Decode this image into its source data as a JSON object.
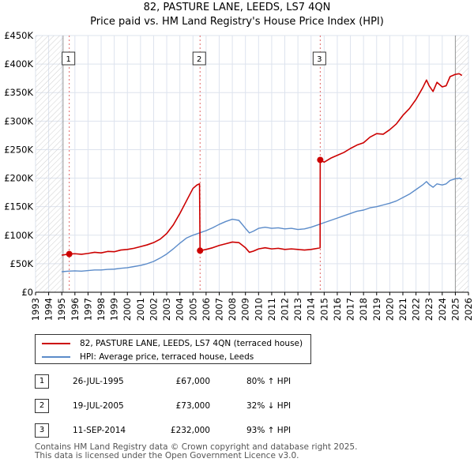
{
  "chart_data": {
    "type": "line",
    "title": "82, PASTURE LANE, LEEDS, LS7 4QN",
    "subtitle": "Price paid vs. HM Land Registry's House Price Index (HPI)",
    "xlim": [
      1993,
      2026
    ],
    "ylim": [
      0,
      450000
    ],
    "y_ticks": [
      {
        "value": 0,
        "label": "£0"
      },
      {
        "value": 50000,
        "label": "£50K"
      },
      {
        "value": 100000,
        "label": "£100K"
      },
      {
        "value": 150000,
        "label": "£150K"
      },
      {
        "value": 200000,
        "label": "£200K"
      },
      {
        "value": 250000,
        "label": "£250K"
      },
      {
        "value": 300000,
        "label": "£300K"
      },
      {
        "value": 350000,
        "label": "£350K"
      },
      {
        "value": 400000,
        "label": "£400K"
      },
      {
        "value": 450000,
        "label": "£450K"
      }
    ],
    "x_ticks": [
      "1993",
      "1994",
      "1995",
      "1996",
      "1997",
      "1998",
      "1999",
      "2000",
      "2001",
      "2002",
      "2003",
      "2004",
      "2005",
      "2006",
      "2007",
      "2008",
      "2009",
      "2010",
      "2011",
      "2012",
      "2013",
      "2014",
      "2015",
      "2016",
      "2017",
      "2018",
      "2019",
      "2020",
      "2021",
      "2022",
      "2023",
      "2024",
      "2025",
      "2026"
    ],
    "hatch_ranges": [
      [
        1993,
        1995.1
      ],
      [
        2025.0,
        2026
      ]
    ],
    "series": [
      {
        "name": "82, PASTURE LANE, LEEDS, LS7 4QN (terraced house)",
        "color": "#cc0000",
        "points": [
          [
            1995.0,
            65000
          ],
          [
            1995.57,
            67000
          ],
          [
            1996.0,
            67500
          ],
          [
            1996.5,
            66500
          ],
          [
            1997.0,
            68000
          ],
          [
            1997.5,
            70000
          ],
          [
            1998.0,
            69000
          ],
          [
            1998.5,
            71500
          ],
          [
            1999.0,
            71000
          ],
          [
            1999.5,
            74000
          ],
          [
            2000.0,
            75000
          ],
          [
            2000.5,
            77000
          ],
          [
            2001.0,
            80000
          ],
          [
            2001.5,
            83000
          ],
          [
            2002.0,
            87000
          ],
          [
            2002.5,
            93000
          ],
          [
            2003.0,
            103000
          ],
          [
            2003.5,
            118000
          ],
          [
            2004.0,
            138000
          ],
          [
            2004.5,
            160000
          ],
          [
            2005.0,
            182000
          ],
          [
            2005.3,
            188000
          ],
          [
            2005.5,
            190000
          ],
          [
            2005.54,
            73000
          ],
          [
            2006.0,
            75000
          ],
          [
            2006.5,
            78000
          ],
          [
            2007.0,
            82000
          ],
          [
            2007.5,
            85000
          ],
          [
            2008.0,
            88000
          ],
          [
            2008.5,
            87000
          ],
          [
            2009.0,
            78000
          ],
          [
            2009.3,
            70000
          ],
          [
            2009.6,
            72000
          ],
          [
            2010.0,
            76000
          ],
          [
            2010.5,
            78000
          ],
          [
            2011.0,
            76000
          ],
          [
            2011.5,
            77000
          ],
          [
            2012.0,
            75000
          ],
          [
            2012.5,
            76000
          ],
          [
            2013.0,
            75000
          ],
          [
            2013.5,
            74000
          ],
          [
            2014.0,
            75000
          ],
          [
            2014.5,
            77000
          ],
          [
            2014.69,
            78000
          ],
          [
            2014.7,
            232000
          ],
          [
            2015.0,
            228000
          ],
          [
            2015.5,
            235000
          ],
          [
            2016.0,
            240000
          ],
          [
            2016.5,
            245000
          ],
          [
            2017.0,
            252000
          ],
          [
            2017.5,
            258000
          ],
          [
            2018.0,
            262000
          ],
          [
            2018.5,
            272000
          ],
          [
            2019.0,
            278000
          ],
          [
            2019.5,
            277000
          ],
          [
            2020.0,
            285000
          ],
          [
            2020.5,
            295000
          ],
          [
            2021.0,
            310000
          ],
          [
            2021.5,
            322000
          ],
          [
            2022.0,
            338000
          ],
          [
            2022.5,
            358000
          ],
          [
            2022.8,
            372000
          ],
          [
            2023.0,
            362000
          ],
          [
            2023.3,
            352000
          ],
          [
            2023.6,
            368000
          ],
          [
            2024.0,
            360000
          ],
          [
            2024.3,
            362000
          ],
          [
            2024.6,
            378000
          ],
          [
            2025.0,
            382000
          ],
          [
            2025.3,
            383000
          ],
          [
            2025.5,
            380000
          ]
        ]
      },
      {
        "name": "HPI: Average price, terraced house, Leeds",
        "color": "#5b8bc9",
        "points": [
          [
            1995.0,
            36000
          ],
          [
            1995.5,
            37000
          ],
          [
            1996.0,
            37500
          ],
          [
            1996.5,
            37000
          ],
          [
            1997.0,
            38000
          ],
          [
            1997.5,
            39000
          ],
          [
            1998.0,
            39000
          ],
          [
            1998.5,
            40000
          ],
          [
            1999.0,
            40500
          ],
          [
            1999.5,
            42000
          ],
          [
            2000.0,
            43000
          ],
          [
            2000.5,
            45000
          ],
          [
            2001.0,
            47000
          ],
          [
            2001.5,
            50000
          ],
          [
            2002.0,
            54000
          ],
          [
            2002.5,
            60000
          ],
          [
            2003.0,
            67000
          ],
          [
            2003.5,
            76000
          ],
          [
            2004.0,
            86000
          ],
          [
            2004.5,
            95000
          ],
          [
            2005.0,
            100000
          ],
          [
            2005.5,
            104000
          ],
          [
            2006.0,
            108000
          ],
          [
            2006.5,
            113000
          ],
          [
            2007.0,
            119000
          ],
          [
            2007.5,
            124000
          ],
          [
            2008.0,
            128000
          ],
          [
            2008.5,
            126000
          ],
          [
            2009.0,
            112000
          ],
          [
            2009.3,
            104000
          ],
          [
            2009.6,
            107000
          ],
          [
            2010.0,
            112000
          ],
          [
            2010.5,
            114000
          ],
          [
            2011.0,
            112000
          ],
          [
            2011.5,
            113000
          ],
          [
            2012.0,
            111000
          ],
          [
            2012.5,
            112000
          ],
          [
            2013.0,
            110000
          ],
          [
            2013.5,
            111000
          ],
          [
            2014.0,
            114000
          ],
          [
            2014.5,
            118000
          ],
          [
            2015.0,
            122000
          ],
          [
            2015.5,
            126000
          ],
          [
            2016.0,
            130000
          ],
          [
            2016.5,
            134000
          ],
          [
            2017.0,
            138000
          ],
          [
            2017.5,
            142000
          ],
          [
            2018.0,
            144000
          ],
          [
            2018.5,
            148000
          ],
          [
            2019.0,
            150000
          ],
          [
            2019.5,
            153000
          ],
          [
            2020.0,
            156000
          ],
          [
            2020.5,
            160000
          ],
          [
            2021.0,
            166000
          ],
          [
            2021.5,
            172000
          ],
          [
            2022.0,
            180000
          ],
          [
            2022.5,
            188000
          ],
          [
            2022.8,
            194000
          ],
          [
            2023.0,
            189000
          ],
          [
            2023.3,
            184000
          ],
          [
            2023.6,
            190000
          ],
          [
            2024.0,
            188000
          ],
          [
            2024.3,
            190000
          ],
          [
            2024.6,
            196000
          ],
          [
            2025.0,
            199000
          ],
          [
            2025.3,
            200000
          ],
          [
            2025.5,
            198000
          ]
        ]
      }
    ],
    "sales": [
      {
        "id": "1",
        "x": 1995.57,
        "price": 67000,
        "date": "26-JUL-1995",
        "price_label": "£67,000",
        "hpi": "80% ↑ HPI"
      },
      {
        "id": "2",
        "x": 2005.54,
        "price": 73000,
        "date": "19-JUL-2005",
        "price_label": "£73,000",
        "hpi": "32% ↓ HPI"
      },
      {
        "id": "3",
        "x": 2014.7,
        "price": 232000,
        "date": "11-SEP-2014",
        "price_label": "£232,000",
        "hpi": "93% ↑ HPI"
      }
    ],
    "legend_position": "below"
  },
  "footer": {
    "line1": "Contains HM Land Registry data © Crown copyright and database right 2025.",
    "line2": "This data is licensed under the Open Government Licence v3.0."
  },
  "colors": {
    "grid": "#dde3ee",
    "plot_bg": "#ffffff",
    "sale_line": "#cc0000",
    "hpi_line": "#5b8bc9"
  }
}
